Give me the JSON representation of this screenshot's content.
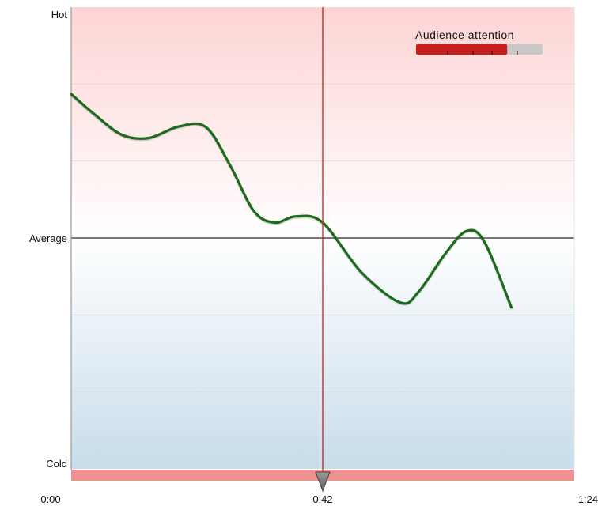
{
  "chart_data": {
    "type": "line",
    "title": "",
    "xlabel": "",
    "ylabel": "",
    "x_range_seconds": [
      0,
      84
    ],
    "x_ticks": [
      {
        "label": "0:00",
        "value": 0
      },
      {
        "label": "0:42",
        "value": 42
      },
      {
        "label": "1:24",
        "value": 84
      }
    ],
    "y_scale": "relative attention, -3 = Cold, 0 = Average, +3 = Hot",
    "ylim": [
      -3,
      3
    ],
    "y_ticks": [
      {
        "label": "Hot",
        "value": 3
      },
      {
        "label": "Average",
        "value": 0
      },
      {
        "label": "Cold",
        "value": -3
      }
    ],
    "gridlines_y": [
      2,
      1,
      -1,
      -2
    ],
    "grid": true,
    "series": [
      {
        "color": "#1e6b1e",
        "points": [
          {
            "x": 0,
            "y": 1.87
          },
          {
            "x": 4,
            "y": 1.6
          },
          {
            "x": 8.5,
            "y": 1.34
          },
          {
            "x": 13,
            "y": 1.3
          },
          {
            "x": 18,
            "y": 1.45
          },
          {
            "x": 22.5,
            "y": 1.44
          },
          {
            "x": 26.5,
            "y": 0.95
          },
          {
            "x": 30.5,
            "y": 0.35
          },
          {
            "x": 34,
            "y": 0.2
          },
          {
            "x": 37.5,
            "y": 0.28
          },
          {
            "x": 42,
            "y": 0.2
          },
          {
            "x": 48.5,
            "y": -0.45
          },
          {
            "x": 55,
            "y": -0.84
          },
          {
            "x": 58,
            "y": -0.7
          },
          {
            "x": 62.5,
            "y": -0.2
          },
          {
            "x": 66,
            "y": 0.09
          },
          {
            "x": 69,
            "y": -0.05
          },
          {
            "x": 73.5,
            "y": -0.9
          }
        ]
      }
    ],
    "playhead": {
      "x": 42,
      "color": "#cc2b2b"
    },
    "legend": {
      "title": "Audience attention",
      "placement": "top-right",
      "level_fraction": 0.72,
      "fill_color": "#c81e1e",
      "track_color": "#c8c8c8",
      "tick_fractions": [
        0.25,
        0.45,
        0.6,
        0.8
      ]
    },
    "colors": {
      "hot_band": "#fdd4d4",
      "cold_band": "#c8dcea",
      "average_line": "#777777",
      "timeline_bar": "#ee9191",
      "playhead_marker": "#707070"
    }
  }
}
